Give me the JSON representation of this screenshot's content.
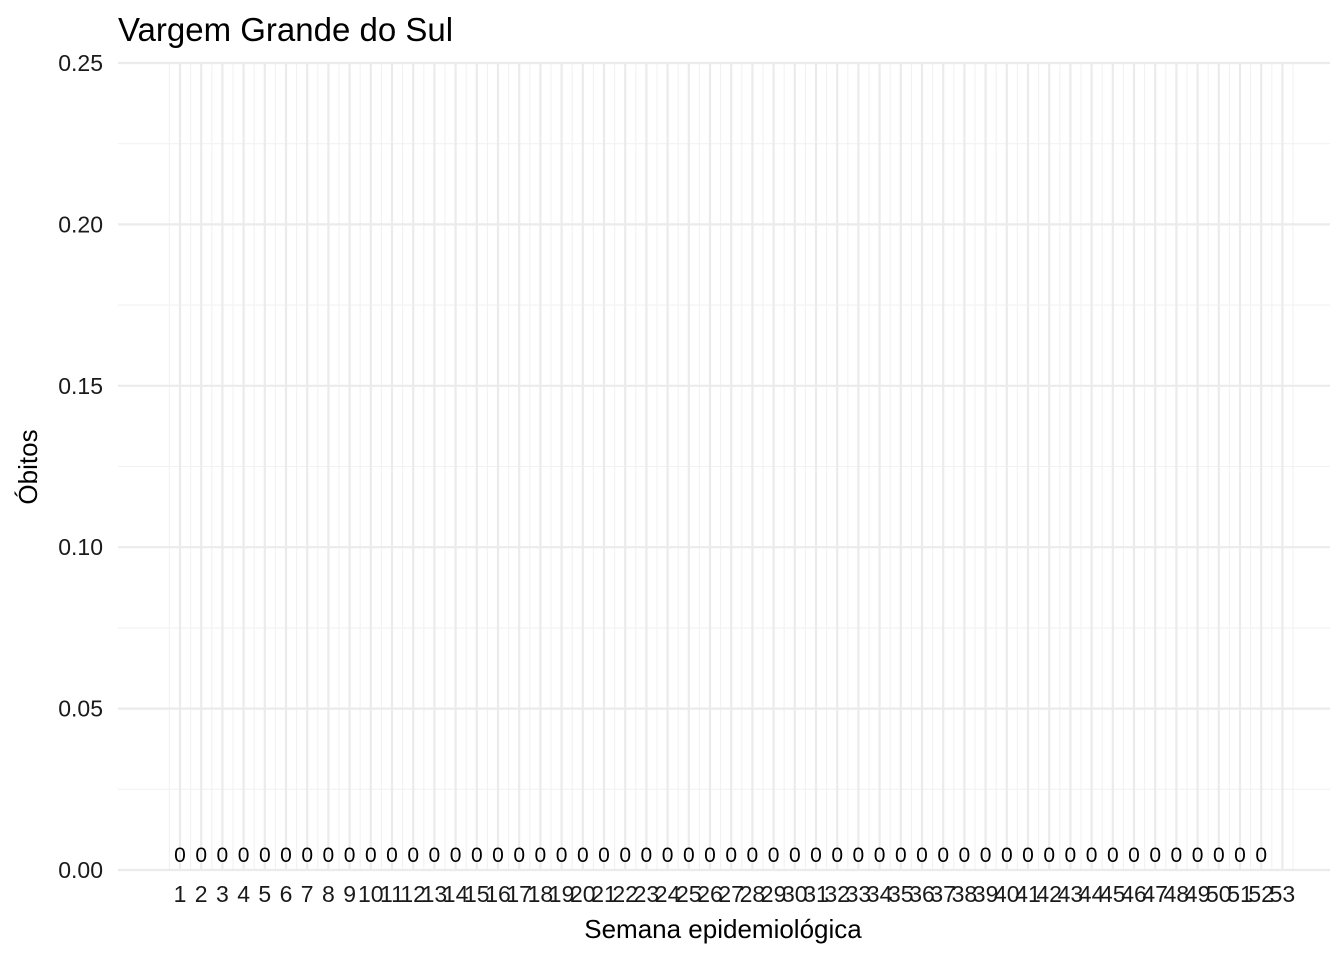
{
  "chart_data": {
    "type": "bar",
    "title": "Vargem Grande do Sul",
    "xlabel": "Semana epidemiológica",
    "ylabel": "Óbitos",
    "ylim": [
      0,
      0.25
    ],
    "yticks": [
      "0.00",
      "0.05",
      "0.10",
      "0.15",
      "0.20",
      "0.25"
    ],
    "yticks_values": [
      0,
      0.05,
      0.1,
      0.15,
      0.2,
      0.25
    ],
    "categories": [
      "1",
      "2",
      "3",
      "4",
      "5",
      "6",
      "7",
      "8",
      "9",
      "10",
      "11",
      "12",
      "13",
      "14",
      "15",
      "16",
      "17",
      "18",
      "19",
      "20",
      "21",
      "22",
      "23",
      "24",
      "25",
      "26",
      "27",
      "28",
      "29",
      "30",
      "31",
      "32",
      "33",
      "34",
      "35",
      "36",
      "37",
      "38",
      "39",
      "40",
      "41",
      "42",
      "43",
      "44",
      "45",
      "46",
      "47",
      "48",
      "49",
      "50",
      "51",
      "52",
      "53"
    ],
    "values": [
      0,
      0,
      0,
      0,
      0,
      0,
      0,
      0,
      0,
      0,
      0,
      0,
      0,
      0,
      0,
      0,
      0,
      0,
      0,
      0,
      0,
      0,
      0,
      0,
      0,
      0,
      0,
      0,
      0,
      0,
      0,
      0,
      0,
      0,
      0,
      0,
      0,
      0,
      0,
      0,
      0,
      0,
      0,
      0,
      0,
      0,
      0,
      0,
      0,
      0,
      0,
      0,
      null
    ],
    "data_labels": [
      "0",
      "0",
      "0",
      "0",
      "0",
      "0",
      "0",
      "0",
      "0",
      "0",
      "0",
      "0",
      "0",
      "0",
      "0",
      "0",
      "0",
      "0",
      "0",
      "0",
      "0",
      "0",
      "0",
      "0",
      "0",
      "0",
      "0",
      "0",
      "0",
      "0",
      "0",
      "0",
      "0",
      "0",
      "0",
      "0",
      "0",
      "0",
      "0",
      "0",
      "0",
      "0",
      "0",
      "0",
      "0",
      "0",
      "0",
      "0",
      "0",
      "0",
      "0",
      "0",
      ""
    ],
    "grid": true,
    "legend": "none"
  }
}
